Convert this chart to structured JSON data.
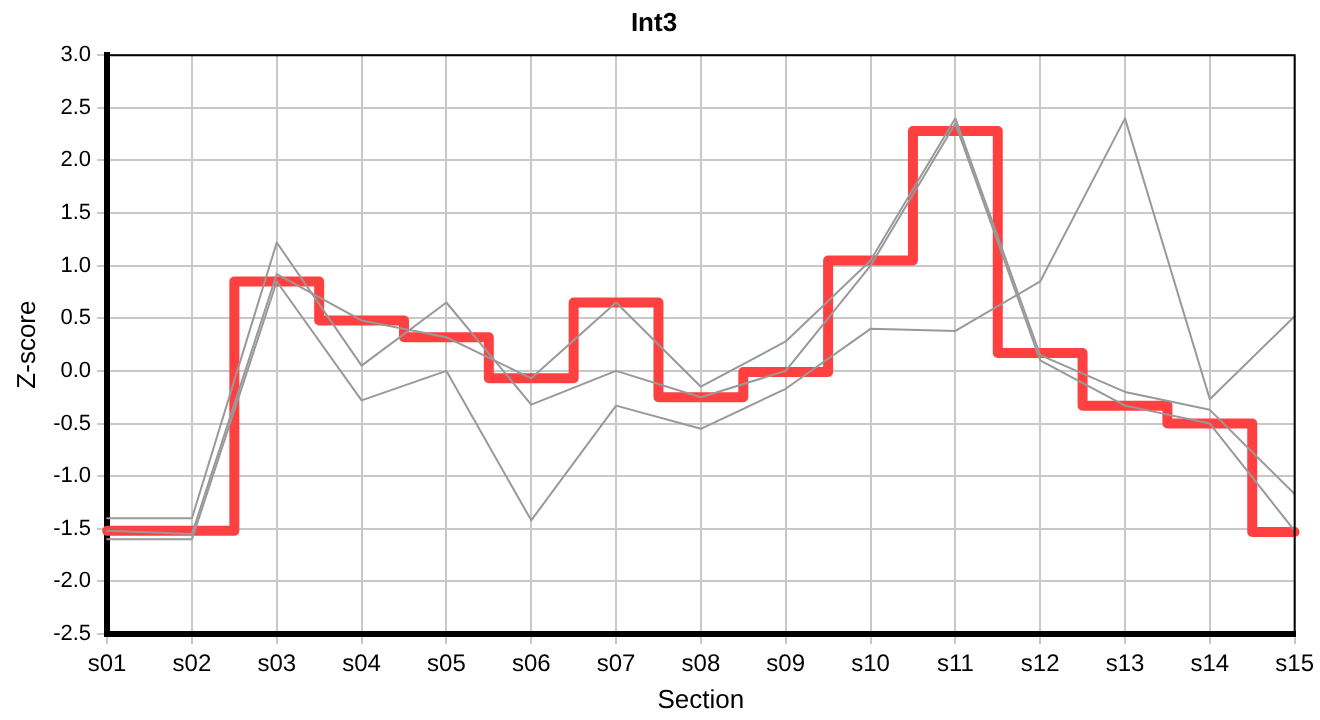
{
  "chart_data": {
    "type": "line",
    "title": "Int3",
    "xlabel": "Section",
    "ylabel": "Z-score",
    "categories": [
      "s01",
      "s02",
      "s03",
      "s04",
      "s05",
      "s06",
      "s07",
      "s08",
      "s09",
      "s10",
      "s11",
      "s12",
      "s13",
      "s14",
      "s15"
    ],
    "series": [
      {
        "color": "#999999",
        "values": [
          -1.52,
          -1.55,
          0.92,
          0.48,
          0.32,
          -0.07,
          0.65,
          -0.15,
          0.28,
          1.05,
          2.4,
          0.15,
          -0.2,
          -0.37,
          -1.17
        ]
      },
      {
        "color": "#999999",
        "values": [
          -1.4,
          -1.4,
          1.22,
          0.05,
          0.65,
          -0.32,
          0.0,
          -0.25,
          0.0,
          1.0,
          2.35,
          0.1,
          -0.33,
          -0.5,
          -1.52
        ]
      },
      {
        "color": "#999999",
        "values": [
          -1.6,
          -1.6,
          0.85,
          -0.28,
          0.0,
          -1.42,
          -0.33,
          -0.55,
          -0.17,
          0.4,
          0.38,
          0.85,
          2.4,
          -0.27,
          0.52
        ]
      },
      {
        "type": "step",
        "color": "#ff4040",
        "values": [
          -1.52,
          -1.52,
          0.85,
          0.48,
          0.32,
          -0.07,
          0.65,
          -0.25,
          -0.01,
          1.05,
          2.28,
          0.17,
          -0.33,
          -0.5,
          -1.53
        ]
      }
    ],
    "ylim": [
      -2.5,
      3.0
    ],
    "yticks": [
      {
        "value": -2.5,
        "label": "-2.5"
      },
      {
        "value": -2.0,
        "label": "-2.0"
      },
      {
        "value": -1.5,
        "label": "-1.5"
      },
      {
        "value": -1.0,
        "label": "-1.0"
      },
      {
        "value": -0.5,
        "label": "-0.5"
      },
      {
        "value": 0,
        "label": "0.0"
      },
      {
        "value": 0.5,
        "label": "0.5"
      },
      {
        "value": 1.0,
        "label": "1.0"
      },
      {
        "value": 1.5,
        "label": "1.5"
      },
      {
        "value": 2.0,
        "label": "2.0"
      },
      {
        "value": 2.5,
        "label": "2.5"
      },
      {
        "value": 3.0,
        "label": "3.0"
      }
    ],
    "grid": true,
    "legend": false,
    "marker": "none",
    "line_style": "solid"
  }
}
